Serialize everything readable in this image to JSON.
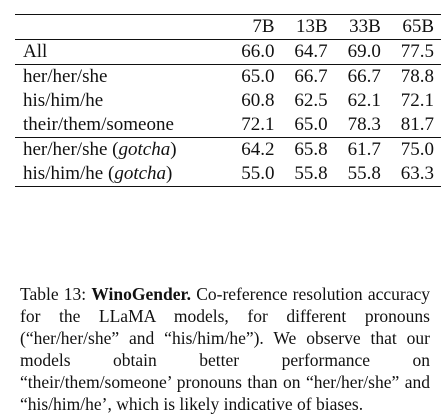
{
  "table": {
    "columns": [
      "7B",
      "13B",
      "33B",
      "65B"
    ],
    "groups": [
      {
        "rows": [
          {
            "label": "All",
            "values": [
              "66.0",
              "64.7",
              "69.0",
              "77.5"
            ]
          }
        ]
      },
      {
        "rows": [
          {
            "label": "her/her/she",
            "values": [
              "65.0",
              "66.7",
              "66.7",
              "78.8"
            ]
          },
          {
            "label": "his/him/he",
            "values": [
              "60.8",
              "62.5",
              "62.1",
              "72.1"
            ]
          },
          {
            "label": "their/them/someone",
            "values": [
              "72.1",
              "65.0",
              "78.3",
              "81.7"
            ]
          }
        ]
      },
      {
        "rows": [
          {
            "label": "her/her/she",
            "label_italic": "gotcha",
            "values": [
              "64.2",
              "65.8",
              "61.7",
              "75.0"
            ]
          },
          {
            "label": "his/him/he",
            "label_italic": "gotcha",
            "values": [
              "55.0",
              "55.8",
              "55.8",
              "63.3"
            ]
          }
        ]
      }
    ]
  },
  "caption": {
    "label": "Table 13:",
    "title": "WinoGender.",
    "text": "Co-reference resolution accuracy for the LLaMA models, for different pronouns (“her/her/she” and “his/him/he”). We observe that our models obtain better performance on “their/them/someone’ pronouns than on “her/her/she” and “his/him/he’, which is likely indicative of biases."
  }
}
